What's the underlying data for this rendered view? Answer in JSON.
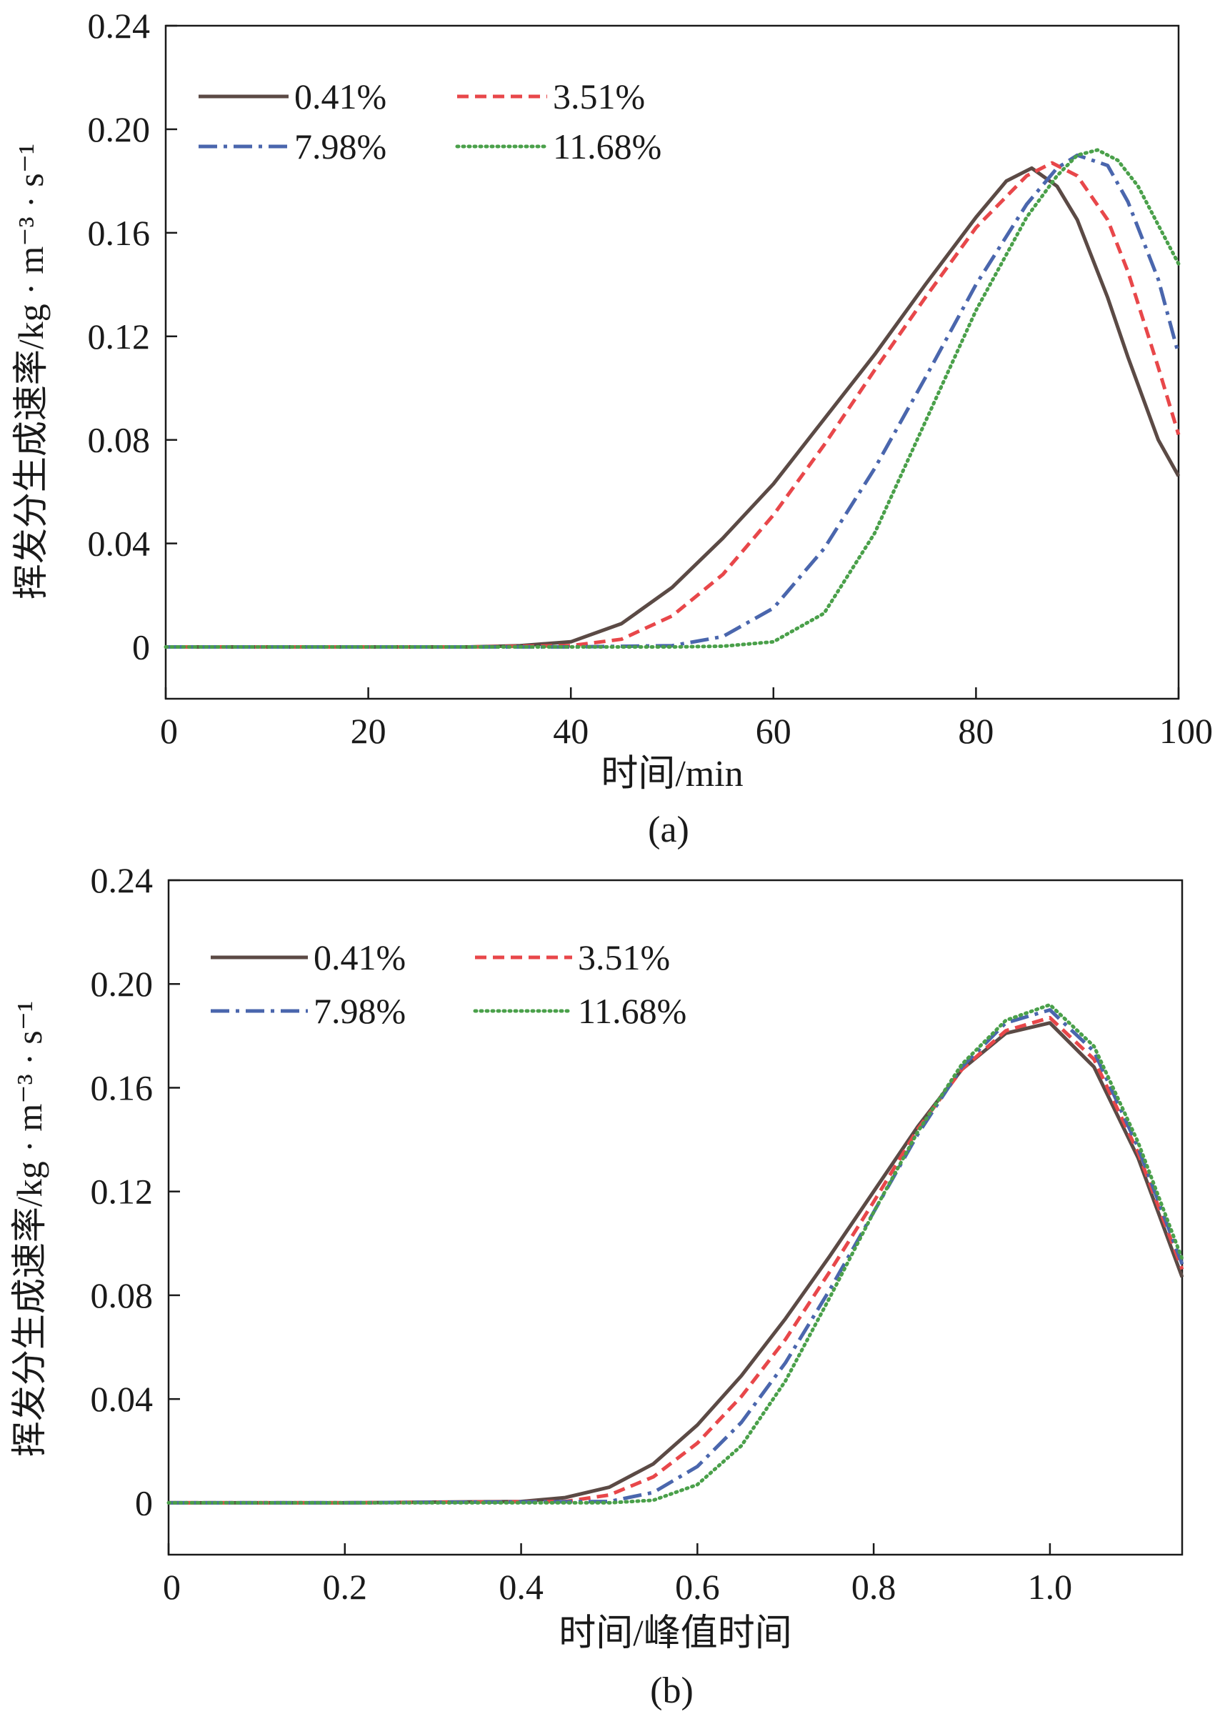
{
  "colors": {
    "series_0": "#5b4a45",
    "series_1": "#e8474a",
    "series_2": "#4a66ad",
    "series_3": "#4aa04a",
    "axis": "#1a1a1a"
  },
  "chart_data": [
    {
      "type": "line",
      "panel_label": "(a)",
      "xlabel": "时间/min",
      "ylabel": "挥发分生成速率/kg · m⁻³ · s⁻¹",
      "xlim": [
        0,
        100
      ],
      "ylim": [
        -0.02,
        0.24
      ],
      "xticks": [
        "0",
        "20",
        "40",
        "60",
        "80",
        "100"
      ],
      "yticks": [
        "0",
        "0.04",
        "0.08",
        "0.12",
        "0.16",
        "0.20",
        "0.24"
      ],
      "legend_position": "top-left",
      "series": [
        {
          "name": "0.41%",
          "style": "solid",
          "x": [
            0,
            10,
            20,
            30,
            35,
            40,
            45,
            50,
            55,
            60,
            65,
            70,
            75,
            80,
            83,
            85.5,
            88,
            90,
            93,
            95,
            98,
            100
          ],
          "y": [
            0,
            0,
            0,
            0,
            0.0005,
            0.002,
            0.009,
            0.023,
            0.042,
            0.063,
            0.088,
            0.113,
            0.14,
            0.166,
            0.18,
            0.185,
            0.178,
            0.165,
            0.135,
            0.112,
            0.08,
            0.066
          ]
        },
        {
          "name": "3.51%",
          "style": "dashed",
          "x": [
            0,
            10,
            20,
            30,
            40,
            45,
            50,
            55,
            60,
            65,
            70,
            75,
            80,
            85,
            87.5,
            90,
            93,
            95,
            98,
            100
          ],
          "y": [
            0,
            0,
            0,
            0,
            0.0005,
            0.003,
            0.012,
            0.028,
            0.051,
            0.078,
            0.107,
            0.135,
            0.162,
            0.182,
            0.187,
            0.182,
            0.165,
            0.145,
            0.108,
            0.082
          ]
        },
        {
          "name": "7.98%",
          "style": "dash-dot",
          "x": [
            0,
            10,
            20,
            30,
            40,
            50,
            55,
            60,
            65,
            70,
            75,
            80,
            85,
            88,
            90,
            93,
            95,
            98,
            100
          ],
          "y": [
            0,
            0,
            0,
            0,
            0,
            0.0005,
            0.004,
            0.015,
            0.038,
            0.069,
            0.104,
            0.14,
            0.171,
            0.185,
            0.19,
            0.186,
            0.172,
            0.142,
            0.113
          ]
        },
        {
          "name": "11.68%",
          "style": "dotted",
          "x": [
            0,
            10,
            20,
            30,
            40,
            50,
            55,
            60,
            65,
            70,
            75,
            80,
            85,
            88,
            90,
            92,
            94,
            96,
            98,
            100
          ],
          "y": [
            0,
            0,
            0,
            0,
            0,
            0,
            0.0003,
            0.002,
            0.013,
            0.044,
            0.087,
            0.13,
            0.166,
            0.182,
            0.19,
            0.192,
            0.188,
            0.178,
            0.163,
            0.148
          ]
        }
      ]
    },
    {
      "type": "line",
      "panel_label": "(b)",
      "xlabel": "时间/峰值时间",
      "ylabel": "挥发分生成速率/kg · m⁻³ · s⁻¹",
      "xlim": [
        0,
        1.15
      ],
      "ylim": [
        -0.02,
        0.24
      ],
      "xticks": [
        "0",
        "0.2",
        "0.4",
        "0.6",
        "0.8",
        "1.0"
      ],
      "yticks": [
        "0",
        "0.04",
        "0.08",
        "0.12",
        "0.16",
        "0.20",
        "0.24"
      ],
      "legend_position": "top-left",
      "series": [
        {
          "name": "0.41%",
          "style": "solid",
          "x": [
            0,
            0.2,
            0.4,
            0.45,
            0.5,
            0.55,
            0.6,
            0.65,
            0.7,
            0.75,
            0.8,
            0.85,
            0.9,
            0.95,
            1.0,
            1.05,
            1.1,
            1.15
          ],
          "y": [
            0,
            0,
            0.0005,
            0.002,
            0.006,
            0.015,
            0.03,
            0.049,
            0.071,
            0.095,
            0.12,
            0.145,
            0.167,
            0.181,
            0.185,
            0.168,
            0.133,
            0.087
          ]
        },
        {
          "name": "3.51%",
          "style": "dashed",
          "x": [
            0,
            0.2,
            0.45,
            0.5,
            0.55,
            0.6,
            0.65,
            0.7,
            0.75,
            0.8,
            0.85,
            0.9,
            0.95,
            1.0,
            1.05,
            1.1,
            1.15
          ],
          "y": [
            0,
            0,
            0.0005,
            0.003,
            0.01,
            0.023,
            0.041,
            0.063,
            0.089,
            0.116,
            0.144,
            0.167,
            0.182,
            0.187,
            0.171,
            0.135,
            0.09
          ]
        },
        {
          "name": "7.98%",
          "style": "dash-dot",
          "x": [
            0,
            0.2,
            0.5,
            0.55,
            0.6,
            0.65,
            0.7,
            0.75,
            0.8,
            0.85,
            0.9,
            0.95,
            1.0,
            1.05,
            1.1,
            1.15
          ],
          "y": [
            0,
            0,
            0.0005,
            0.004,
            0.014,
            0.031,
            0.054,
            0.082,
            0.112,
            0.142,
            0.168,
            0.185,
            0.19,
            0.174,
            0.137,
            0.092
          ]
        },
        {
          "name": "11.68%",
          "style": "dotted",
          "x": [
            0,
            0.2,
            0.5,
            0.55,
            0.6,
            0.65,
            0.7,
            0.75,
            0.8,
            0.85,
            0.9,
            0.95,
            1.0,
            1.05,
            1.1,
            1.15
          ],
          "y": [
            0,
            0,
            0,
            0.001,
            0.007,
            0.022,
            0.047,
            0.079,
            0.112,
            0.143,
            0.169,
            0.186,
            0.192,
            0.176,
            0.139,
            0.094
          ]
        }
      ]
    }
  ]
}
